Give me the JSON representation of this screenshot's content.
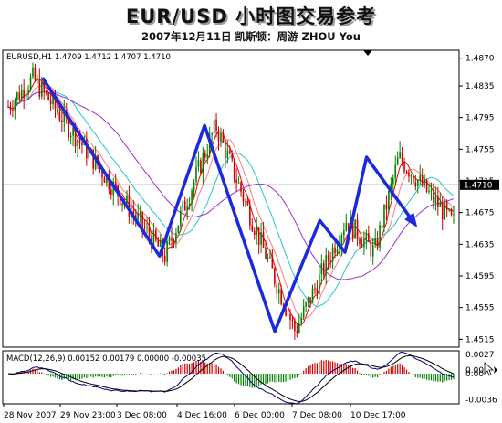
{
  "header": {
    "title": "EUR/USD 小时图交易参考",
    "subtitle": "2007年12月11日  凯斯顿：周游 ZHOU You"
  },
  "chart_data": {
    "type": "candlestick",
    "symbol_label": "EURUSD,H1  1.4709 1.4712 1.4707 1.4710",
    "y_ticks": [
      "1.4870",
      "1.4835",
      "1.4795",
      "1.4755",
      "1.4715",
      "1.4675",
      "1.4635",
      "1.4595",
      "1.4555",
      "1.4515"
    ],
    "y_tick_values": [
      1.487,
      1.4835,
      1.4795,
      1.4755,
      1.4715,
      1.4675,
      1.4635,
      1.4595,
      1.4555,
      1.4515
    ],
    "ylim": [
      1.4505,
      1.488
    ],
    "current_price_label": "1.4710",
    "current_price": 1.471,
    "x_ticks": [
      "28 Nov 2007",
      "29 Nov 23:00",
      "3 Dec 08:00",
      "4 Dec 16:00",
      "6 Dec 00:00",
      "7 Dec 08:00",
      "10 Dec 17:00"
    ],
    "bar_count": 200,
    "wave_line": [
      {
        "bar": 12,
        "price": 1.4845
      },
      {
        "bar": 77,
        "price": 1.462
      },
      {
        "bar": 102,
        "price": 1.4785
      },
      {
        "bar": 141,
        "price": 1.4525
      },
      {
        "bar": 166,
        "price": 1.4665
      },
      {
        "bar": 180,
        "price": 1.4625
      },
      {
        "bar": 192,
        "price": 1.4745
      },
      {
        "bar": 219,
        "price": 1.466
      }
    ],
    "macd": {
      "label": "MACD(12,26,9) 0.00152 0.00179 0.00000 -0.00035",
      "y_ticks": [
        "0.0027",
        "0.00",
        "0.00",
        "-0.0036"
      ],
      "y_tick_values": [
        0.0027,
        0.0005,
        0.0,
        -0.0036
      ],
      "ylim": [
        -0.0042,
        0.0032
      ]
    }
  },
  "colors": {
    "bull_candle": "#008000",
    "bear_candle": "#cc0000",
    "wave_line": "#1a2adc",
    "ma_fast": "#ff0000",
    "ma_mid": "#ff7b7b",
    "ma_slow": "#22c8c8",
    "ma_slowest": "#a030d0",
    "macd_hist_up": "#cc0000",
    "macd_hist_down": "#008000",
    "macd_line_1": "#000080",
    "macd_line_2": "#000000"
  }
}
